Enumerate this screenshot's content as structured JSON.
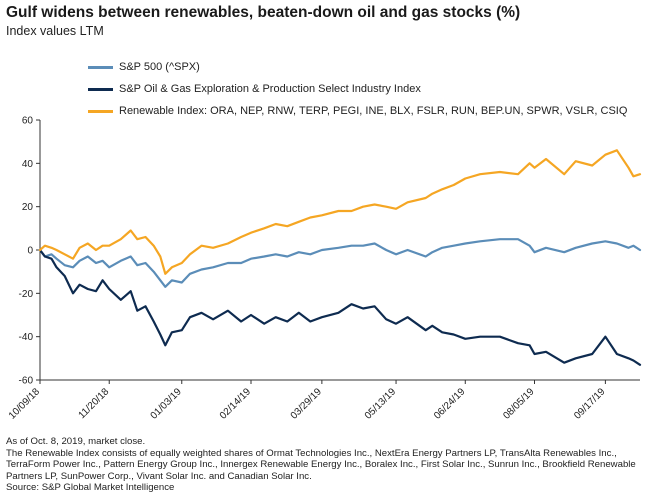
{
  "header": {
    "title": "Gulf widens between renewables, beaten-down oil and gas stocks (%)",
    "subtitle": "Index values LTM"
  },
  "legend": {
    "placement": "top",
    "items": [
      {
        "label": "S&P 500 (^SPX)",
        "color": "#5b8db8"
      },
      {
        "label": "S&P Oil & Gas Exploration & Production Select Industry Index",
        "color": "#0e2b50"
      },
      {
        "label": "Renewable Index: ORA, NEP, RNW, TERP, PEGI, INE, BLX, FSLR, RUN, BEP.UN, SPWR, VSLR, CSIQ",
        "color": "#f5a623"
      }
    ]
  },
  "notes": {
    "line1": "As of Oct. 8, 2019, market close.",
    "line2": "The Renewable Index consists of equally weighted shares of Ormat Technologies Inc., NextEra Energy Partners LP, TransAlta Renewables Inc., TerraForm Power Inc., Pattern Energy Group Inc., Innergex Renewable Energy Inc., Boralex Inc., First Solar Inc., Sunrun Inc., Brookfield Renewable Partners LP, SunPower Corp., Vivant Solar Inc. and Canadian Solar Inc.",
    "line3": "Source: S&P Global Market Intelligence"
  },
  "chart_data": {
    "type": "line",
    "ylim": [
      -60,
      60
    ],
    "yticks": [
      60,
      40,
      20,
      0,
      -20,
      -40,
      -60
    ],
    "xlim": [
      "2018-10-09",
      "2019-10-08"
    ],
    "xticks": [
      "10/09/18",
      "11/20/18",
      "01/03/19",
      "02/14/19",
      "03/29/19",
      "05/13/19",
      "06/24/19",
      "08/05/19",
      "09/17/19"
    ],
    "grid": false,
    "series": [
      {
        "name": "S&P 500 (^SPX)",
        "color": "#5b8db8",
        "points": [
          [
            "2018-10-09",
            0
          ],
          [
            "2018-10-12",
            -3
          ],
          [
            "2018-10-16",
            -2
          ],
          [
            "2018-10-19",
            -4
          ],
          [
            "2018-10-24",
            -7
          ],
          [
            "2018-10-29",
            -8
          ],
          [
            "2018-11-02",
            -5
          ],
          [
            "2018-11-07",
            -3
          ],
          [
            "2018-11-12",
            -6
          ],
          [
            "2018-11-16",
            -5
          ],
          [
            "2018-11-20",
            -8
          ],
          [
            "2018-11-27",
            -5
          ],
          [
            "2018-12-03",
            -3
          ],
          [
            "2018-12-07",
            -7
          ],
          [
            "2018-12-12",
            -6
          ],
          [
            "2018-12-17",
            -10
          ],
          [
            "2018-12-21",
            -14
          ],
          [
            "2018-12-24",
            -17
          ],
          [
            "2018-12-28",
            -14
          ],
          [
            "2019-01-03",
            -15
          ],
          [
            "2019-01-08",
            -11
          ],
          [
            "2019-01-15",
            -9
          ],
          [
            "2019-01-22",
            -8
          ],
          [
            "2019-01-31",
            -6
          ],
          [
            "2019-02-08",
            -6
          ],
          [
            "2019-02-14",
            -4
          ],
          [
            "2019-02-22",
            -3
          ],
          [
            "2019-03-01",
            -2
          ],
          [
            "2019-03-08",
            -3
          ],
          [
            "2019-03-15",
            -1
          ],
          [
            "2019-03-22",
            -2
          ],
          [
            "2019-03-29",
            0
          ],
          [
            "2019-04-08",
            1
          ],
          [
            "2019-04-16",
            2
          ],
          [
            "2019-04-23",
            2
          ],
          [
            "2019-04-30",
            3
          ],
          [
            "2019-05-07",
            0
          ],
          [
            "2019-05-13",
            -2
          ],
          [
            "2019-05-20",
            0
          ],
          [
            "2019-05-31",
            -3
          ],
          [
            "2019-06-04",
            -1
          ],
          [
            "2019-06-10",
            1
          ],
          [
            "2019-06-17",
            2
          ],
          [
            "2019-06-24",
            3
          ],
          [
            "2019-07-03",
            4
          ],
          [
            "2019-07-15",
            5
          ],
          [
            "2019-07-26",
            5
          ],
          [
            "2019-08-02",
            2
          ],
          [
            "2019-08-05",
            -1
          ],
          [
            "2019-08-12",
            1
          ],
          [
            "2019-08-23",
            -1
          ],
          [
            "2019-08-30",
            1
          ],
          [
            "2019-09-09",
            3
          ],
          [
            "2019-09-17",
            4
          ],
          [
            "2019-09-24",
            3
          ],
          [
            "2019-10-01",
            1
          ],
          [
            "2019-10-04",
            2
          ],
          [
            "2019-10-08",
            0
          ]
        ]
      },
      {
        "name": "S&P Oil & Gas Exploration & Production Select Industry Index",
        "color": "#0e2b50",
        "points": [
          [
            "2018-10-09",
            0
          ],
          [
            "2018-10-12",
            -3
          ],
          [
            "2018-10-16",
            -4
          ],
          [
            "2018-10-19",
            -8
          ],
          [
            "2018-10-24",
            -12
          ],
          [
            "2018-10-29",
            -20
          ],
          [
            "2018-11-02",
            -16
          ],
          [
            "2018-11-07",
            -18
          ],
          [
            "2018-11-12",
            -19
          ],
          [
            "2018-11-16",
            -14
          ],
          [
            "2018-11-20",
            -18
          ],
          [
            "2018-11-27",
            -23
          ],
          [
            "2018-12-03",
            -19
          ],
          [
            "2018-12-07",
            -28
          ],
          [
            "2018-12-12",
            -26
          ],
          [
            "2018-12-17",
            -33
          ],
          [
            "2018-12-21",
            -39
          ],
          [
            "2018-12-24",
            -44
          ],
          [
            "2018-12-28",
            -38
          ],
          [
            "2019-01-03",
            -37
          ],
          [
            "2019-01-08",
            -31
          ],
          [
            "2019-01-15",
            -29
          ],
          [
            "2019-01-22",
            -32
          ],
          [
            "2019-01-31",
            -28
          ],
          [
            "2019-02-08",
            -33
          ],
          [
            "2019-02-14",
            -30
          ],
          [
            "2019-02-22",
            -34
          ],
          [
            "2019-03-01",
            -31
          ],
          [
            "2019-03-08",
            -33
          ],
          [
            "2019-03-15",
            -29
          ],
          [
            "2019-03-22",
            -33
          ],
          [
            "2019-03-29",
            -31
          ],
          [
            "2019-04-08",
            -29
          ],
          [
            "2019-04-16",
            -25
          ],
          [
            "2019-04-23",
            -27
          ],
          [
            "2019-04-30",
            -26
          ],
          [
            "2019-05-07",
            -32
          ],
          [
            "2019-05-13",
            -34
          ],
          [
            "2019-05-20",
            -31
          ],
          [
            "2019-05-31",
            -37
          ],
          [
            "2019-06-04",
            -35
          ],
          [
            "2019-06-10",
            -38
          ],
          [
            "2019-06-17",
            -39
          ],
          [
            "2019-06-24",
            -41
          ],
          [
            "2019-07-03",
            -40
          ],
          [
            "2019-07-15",
            -40
          ],
          [
            "2019-07-26",
            -43
          ],
          [
            "2019-08-02",
            -44
          ],
          [
            "2019-08-05",
            -48
          ],
          [
            "2019-08-12",
            -47
          ],
          [
            "2019-08-23",
            -52
          ],
          [
            "2019-08-30",
            -50
          ],
          [
            "2019-09-09",
            -48
          ],
          [
            "2019-09-17",
            -40
          ],
          [
            "2019-09-24",
            -48
          ],
          [
            "2019-10-01",
            -50
          ],
          [
            "2019-10-04",
            -51
          ],
          [
            "2019-10-08",
            -53
          ]
        ]
      },
      {
        "name": "Renewable Index: ORA, NEP, RNW, TERP, PEGI, INE, BLX, FSLR, RUN, BEP.UN, SPWR, VSLR, CSIQ",
        "color": "#f5a623",
        "points": [
          [
            "2018-10-09",
            0
          ],
          [
            "2018-10-12",
            2
          ],
          [
            "2018-10-16",
            1
          ],
          [
            "2018-10-19",
            0
          ],
          [
            "2018-10-24",
            -2
          ],
          [
            "2018-10-29",
            -4
          ],
          [
            "2018-11-02",
            1
          ],
          [
            "2018-11-07",
            3
          ],
          [
            "2018-11-12",
            0
          ],
          [
            "2018-11-16",
            2
          ],
          [
            "2018-11-20",
            2
          ],
          [
            "2018-11-27",
            5
          ],
          [
            "2018-12-03",
            9
          ],
          [
            "2018-12-07",
            5
          ],
          [
            "2018-12-12",
            6
          ],
          [
            "2018-12-17",
            2
          ],
          [
            "2018-12-21",
            -3
          ],
          [
            "2018-12-24",
            -11
          ],
          [
            "2018-12-28",
            -8
          ],
          [
            "2019-01-03",
            -6
          ],
          [
            "2019-01-08",
            -2
          ],
          [
            "2019-01-15",
            2
          ],
          [
            "2019-01-22",
            1
          ],
          [
            "2019-01-31",
            3
          ],
          [
            "2019-02-08",
            6
          ],
          [
            "2019-02-14",
            8
          ],
          [
            "2019-02-22",
            10
          ],
          [
            "2019-03-01",
            12
          ],
          [
            "2019-03-08",
            11
          ],
          [
            "2019-03-15",
            13
          ],
          [
            "2019-03-22",
            15
          ],
          [
            "2019-03-29",
            16
          ],
          [
            "2019-04-08",
            18
          ],
          [
            "2019-04-16",
            18
          ],
          [
            "2019-04-23",
            20
          ],
          [
            "2019-04-30",
            21
          ],
          [
            "2019-05-07",
            20
          ],
          [
            "2019-05-13",
            19
          ],
          [
            "2019-05-20",
            22
          ],
          [
            "2019-05-31",
            24
          ],
          [
            "2019-06-04",
            26
          ],
          [
            "2019-06-10",
            28
          ],
          [
            "2019-06-17",
            30
          ],
          [
            "2019-06-24",
            33
          ],
          [
            "2019-07-03",
            35
          ],
          [
            "2019-07-15",
            36
          ],
          [
            "2019-07-26",
            35
          ],
          [
            "2019-08-02",
            40
          ],
          [
            "2019-08-05",
            38
          ],
          [
            "2019-08-12",
            42
          ],
          [
            "2019-08-23",
            35
          ],
          [
            "2019-08-30",
            41
          ],
          [
            "2019-09-09",
            39
          ],
          [
            "2019-09-17",
            44
          ],
          [
            "2019-09-24",
            46
          ],
          [
            "2019-10-01",
            38
          ],
          [
            "2019-10-04",
            34
          ],
          [
            "2019-10-08",
            35
          ]
        ]
      }
    ]
  }
}
